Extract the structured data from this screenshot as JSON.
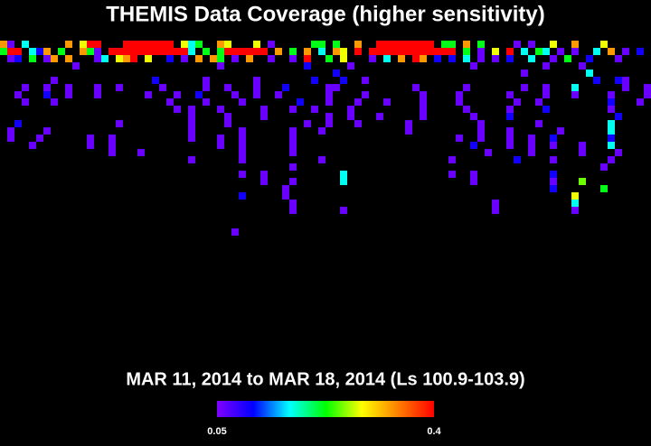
{
  "chart_data": {
    "type": "heatmap",
    "title": "THEMIS Data Coverage (higher sensitivity)",
    "subtitle": "MAR 11, 2014 to MAR 18, 2014 (Ls 100.9-103.9)",
    "xlim": [
      0,
      90
    ],
    "rows": [
      {
        "x": [
          0,
          1,
          3,
          9,
          11,
          12,
          13,
          17,
          18,
          19,
          20,
          21,
          22,
          23,
          25,
          26,
          27,
          30,
          31,
          35,
          37,
          43,
          44,
          46,
          49,
          52,
          53,
          54,
          55,
          56,
          57,
          58,
          59,
          61,
          62,
          64,
          66,
          71,
          73,
          76,
          79,
          83
        ],
        "values": [
          0.33,
          0.06,
          0.17,
          0.33,
          0.28,
          0.4,
          0.4,
          0.4,
          0.4,
          0.4,
          0.4,
          0.4,
          0.4,
          0.4,
          0.28,
          0.17,
          0.22,
          0.33,
          0.28,
          0.28,
          0.06,
          0.22,
          0.22,
          0.22,
          0.33,
          0.4,
          0.4,
          0.4,
          0.4,
          0.4,
          0.4,
          0.4,
          0.4,
          0.22,
          0.22,
          0.33,
          0.22,
          0.06,
          0.06,
          0.28,
          0.33,
          0.28
        ]
      },
      {
        "x": [
          0,
          1,
          2,
          4,
          5,
          6,
          8,
          11,
          12,
          13,
          15,
          16,
          17,
          18,
          19,
          20,
          21,
          22,
          23,
          24,
          25,
          26,
          28,
          30,
          31,
          32,
          33,
          34,
          35,
          36,
          38,
          40,
          42,
          44,
          46,
          47,
          49,
          51,
          52,
          53,
          54,
          55,
          56,
          57,
          58,
          59,
          60,
          61,
          62,
          64,
          66,
          68,
          70,
          72,
          74,
          75,
          77,
          79,
          82,
          84,
          86,
          88
        ],
        "values": [
          0.22,
          0.4,
          0.4,
          0.17,
          0.1,
          0.33,
          0.22,
          0.33,
          0.22,
          0.06,
          0.4,
          0.4,
          0.4,
          0.4,
          0.4,
          0.4,
          0.4,
          0.4,
          0.4,
          0.4,
          0.4,
          0.17,
          0.22,
          0.22,
          0.4,
          0.4,
          0.4,
          0.4,
          0.4,
          0.4,
          0.33,
          0.22,
          0.33,
          0.17,
          0.33,
          0.28,
          0.4,
          0.4,
          0.4,
          0.4,
          0.4,
          0.4,
          0.4,
          0.4,
          0.4,
          0.4,
          0.4,
          0.4,
          0.4,
          0.22,
          0.06,
          0.28,
          0.4,
          0.17,
          0.22,
          0.17,
          0.06,
          0.06,
          0.17,
          0.33,
          0.06,
          0.1
        ]
      },
      {
        "x": [
          1,
          2,
          4,
          6,
          7,
          9,
          13,
          14,
          16,
          17,
          18,
          20,
          23,
          25,
          27,
          29,
          30,
          32,
          34,
          37,
          40,
          42,
          45,
          47,
          51,
          53,
          55,
          57,
          58,
          60,
          62,
          64,
          66,
          68,
          70,
          73,
          76,
          78,
          81,
          85
        ],
        "values": [
          0.06,
          0.1,
          0.22,
          0.06,
          0.33,
          0.33,
          0.06,
          0.17,
          0.28,
          0.33,
          0.4,
          0.28,
          0.1,
          0.06,
          0.33,
          0.33,
          0.22,
          0.06,
          0.33,
          0.06,
          0.06,
          0.4,
          0.22,
          0.28,
          0.06,
          0.17,
          0.33,
          0.4,
          0.33,
          0.1,
          0.1,
          0.17,
          0.06,
          0.06,
          0.1,
          0.17,
          0.06,
          0.22,
          0.1,
          0.06
        ]
      },
      {
        "x": [
          10,
          30,
          42,
          48,
          65,
          75,
          80
        ],
        "values": [
          0.06,
          0.06,
          0.1,
          0.06,
          0.06,
          0.06,
          0.06
        ]
      },
      {
        "x": [
          46,
          72,
          81
        ],
        "values": [
          0.1,
          0.06,
          0.17
        ]
      },
      {
        "x": [
          7,
          21,
          28,
          35,
          43,
          47,
          50,
          82,
          85,
          86
        ],
        "values": [
          0.06,
          0.1,
          0.06,
          0.06,
          0.1,
          0.1,
          0.06,
          0.1,
          0.1,
          0.06
        ]
      },
      {
        "x": [
          3,
          6,
          9,
          13,
          16,
          22,
          28,
          31,
          35,
          39,
          45,
          46,
          57,
          64,
          72,
          75,
          79,
          86,
          89
        ],
        "values": [
          0.06,
          0.06,
          0.06,
          0.06,
          0.06,
          0.06,
          0.06,
          0.06,
          0.06,
          0.1,
          0.06,
          0.06,
          0.06,
          0.06,
          0.06,
          0.06,
          0.17,
          0.06,
          0.06
        ]
      },
      {
        "x": [
          2,
          6,
          9,
          13,
          20,
          24,
          27,
          32,
          35,
          38,
          45,
          50,
          58,
          63,
          70,
          75,
          79,
          84,
          89
        ],
        "values": [
          0.06,
          0.1,
          0.06,
          0.06,
          0.06,
          0.06,
          0.1,
          0.06,
          0.06,
          0.06,
          0.06,
          0.06,
          0.06,
          0.06,
          0.06,
          0.06,
          0.06,
          0.06,
          0.06
        ]
      },
      {
        "x": [
          3,
          7,
          23,
          28,
          33,
          41,
          45,
          49,
          53,
          58,
          63,
          71,
          74,
          84,
          88
        ],
        "values": [
          0.06,
          0.06,
          0.06,
          0.06,
          0.06,
          0.1,
          0.06,
          0.06,
          0.06,
          0.06,
          0.06,
          0.06,
          0.06,
          0.1,
          0.06
        ]
      },
      {
        "x": [
          24,
          26,
          30,
          36,
          40,
          43,
          48,
          58,
          64,
          70,
          75,
          84
        ],
        "values": [
          0.06,
          0.06,
          0.06,
          0.06,
          0.06,
          0.06,
          0.06,
          0.06,
          0.06,
          0.06,
          0.1,
          0.06
        ]
      },
      {
        "x": [
          26,
          31,
          36,
          45,
          48,
          52,
          58,
          65,
          70,
          85
        ],
        "values": [
          0.06,
          0.06,
          0.06,
          0.06,
          0.06,
          0.06,
          0.06,
          0.06,
          0.1,
          0.1
        ]
      },
      {
        "x": [
          2,
          16,
          26,
          31,
          42,
          45,
          49,
          56,
          66,
          74,
          84
        ],
        "values": [
          0.1,
          0.06,
          0.06,
          0.06,
          0.06,
          0.06,
          0.06,
          0.06,
          0.06,
          0.06,
          0.17
        ]
      },
      {
        "x": [
          1,
          6,
          26,
          33,
          40,
          44,
          56,
          66,
          70,
          77,
          84
        ],
        "values": [
          0.06,
          0.06,
          0.06,
          0.06,
          0.06,
          0.06,
          0.06,
          0.06,
          0.06,
          0.06,
          0.17
        ]
      },
      {
        "x": [
          1,
          5,
          12,
          15,
          26,
          30,
          33,
          40,
          63,
          66,
          70,
          73,
          76,
          84
        ],
        "values": [
          0.06,
          0.06,
          0.06,
          0.06,
          0.06,
          0.06,
          0.06,
          0.06,
          0.06,
          0.06,
          0.06,
          0.06,
          0.1,
          0.1
        ]
      },
      {
        "x": [
          4,
          12,
          15,
          30,
          33,
          40,
          65,
          70,
          73,
          76,
          80,
          84
        ],
        "values": [
          0.06,
          0.06,
          0.06,
          0.06,
          0.06,
          0.06,
          0.1,
          0.06,
          0.06,
          0.06,
          0.06,
          0.17
        ]
      },
      {
        "x": [
          15,
          19,
          33,
          40,
          67,
          73,
          80,
          85
        ],
        "values": [
          0.06,
          0.06,
          0.06,
          0.06,
          0.06,
          0.06,
          0.06,
          0.06
        ]
      },
      {
        "x": [
          26,
          33,
          44,
          62,
          71,
          76,
          84
        ],
        "values": [
          0.06,
          0.06,
          0.06,
          0.06,
          0.1,
          0.06,
          0.06
        ]
      },
      {
        "x": [
          40,
          83
        ],
        "values": [
          0.06,
          0.06
        ]
      },
      {
        "x": [
          33,
          36,
          47,
          62,
          65,
          76
        ],
        "values": [
          0.06,
          0.06,
          0.17,
          0.06,
          0.06,
          0.1
        ]
      },
      {
        "x": [
          36,
          40,
          47,
          65,
          76,
          80
        ],
        "values": [
          0.06,
          0.06,
          0.17,
          0.06,
          0.06,
          0.25
        ]
      },
      {
        "x": [
          39,
          76,
          83
        ],
        "values": [
          0.06,
          0.1,
          0.22
        ]
      },
      {
        "x": [
          33,
          39,
          79
        ],
        "values": [
          0.1,
          0.06,
          0.28
        ]
      },
      {
        "x": [
          40,
          68,
          79
        ],
        "values": [
          0.06,
          0.06,
          0.17
        ]
      },
      {
        "x": [
          40,
          47,
          68,
          79
        ],
        "values": [
          0.06,
          0.06,
          0.06,
          0.06
        ]
      },
      {
        "x": [],
        "values": []
      },
      {
        "x": [],
        "values": []
      },
      {
        "x": [
          32
        ],
        "values": [
          0.06
        ]
      }
    ],
    "clim": [
      0.05,
      0.4
    ],
    "colorbar_ticks": [
      0.05,
      0.4
    ],
    "colormap": [
      "#7f00ff",
      "#0000ff",
      "#00ffff",
      "#00ff00",
      "#ffff00",
      "#ff8000",
      "#ff0000"
    ]
  }
}
